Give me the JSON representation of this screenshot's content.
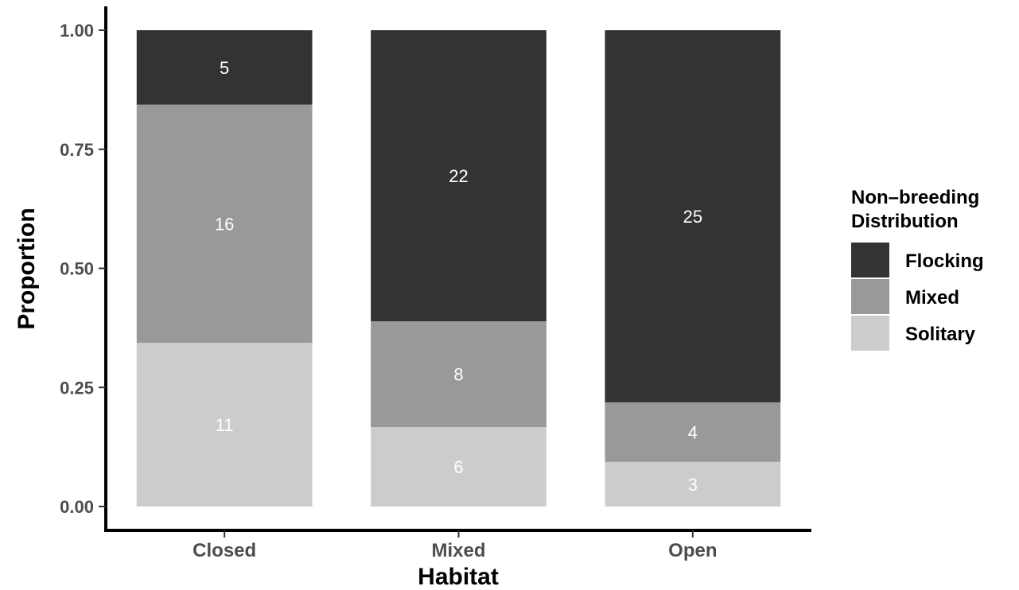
{
  "chart_data": {
    "type": "bar",
    "stacked": true,
    "normalized": true,
    "xlabel": "Habitat",
    "ylabel": "Proportion",
    "ylim": [
      0,
      1
    ],
    "yticks": [
      "0.00",
      "0.25",
      "0.50",
      "0.75",
      "1.00"
    ],
    "categories": [
      "Closed",
      "Mixed",
      "Open"
    ],
    "series": [
      {
        "name": "Solitary",
        "counts": [
          11,
          6,
          3
        ],
        "color": "#cccccc"
      },
      {
        "name": "Mixed",
        "counts": [
          16,
          8,
          4
        ],
        "color": "#999999"
      },
      {
        "name": "Flocking",
        "counts": [
          5,
          22,
          25
        ],
        "color": "#333333"
      }
    ],
    "legend": {
      "title_lines": [
        "Non–breeding",
        "Distribution"
      ],
      "order": [
        "Flocking",
        "Mixed",
        "Solitary"
      ],
      "position": "right"
    },
    "grid": false
  }
}
